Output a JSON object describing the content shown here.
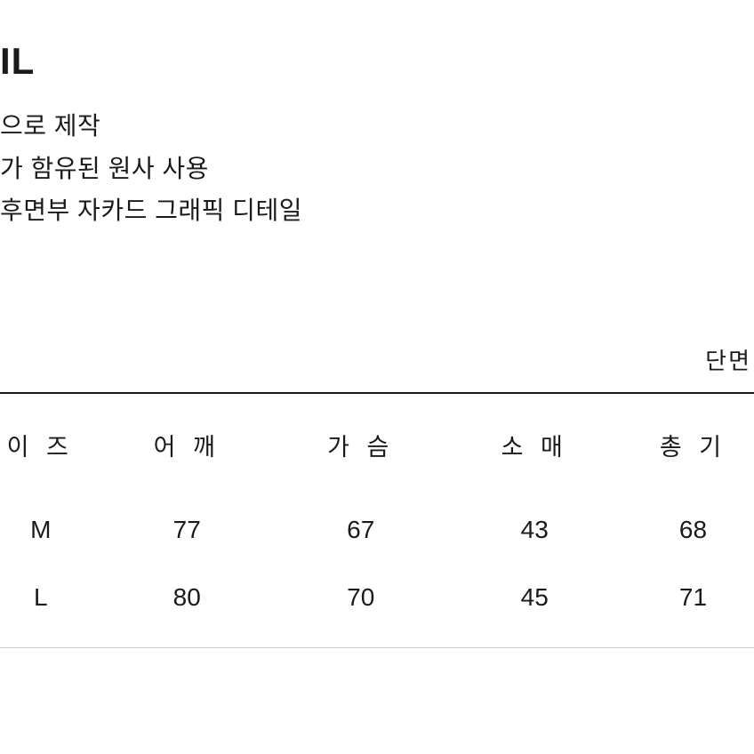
{
  "heading": "IL",
  "bullets": [
    "으로 제작",
    "가 함유된 원사 사용",
    " 후면부 자카드 그래픽 디테일"
  ],
  "unit_label": "단면",
  "table": {
    "columns": [
      "이 즈",
      "어 깨",
      "가 슴",
      "소 매",
      "총 기"
    ],
    "rows": [
      [
        "M",
        "77",
        "67",
        "43",
        "68"
      ],
      [
        "L",
        "80",
        "70",
        "45",
        "71"
      ]
    ]
  },
  "colors": {
    "text": "#1a1a1a",
    "background": "#ffffff",
    "border_top": "#1a1a1a",
    "border_bottom": "#cccccc"
  }
}
